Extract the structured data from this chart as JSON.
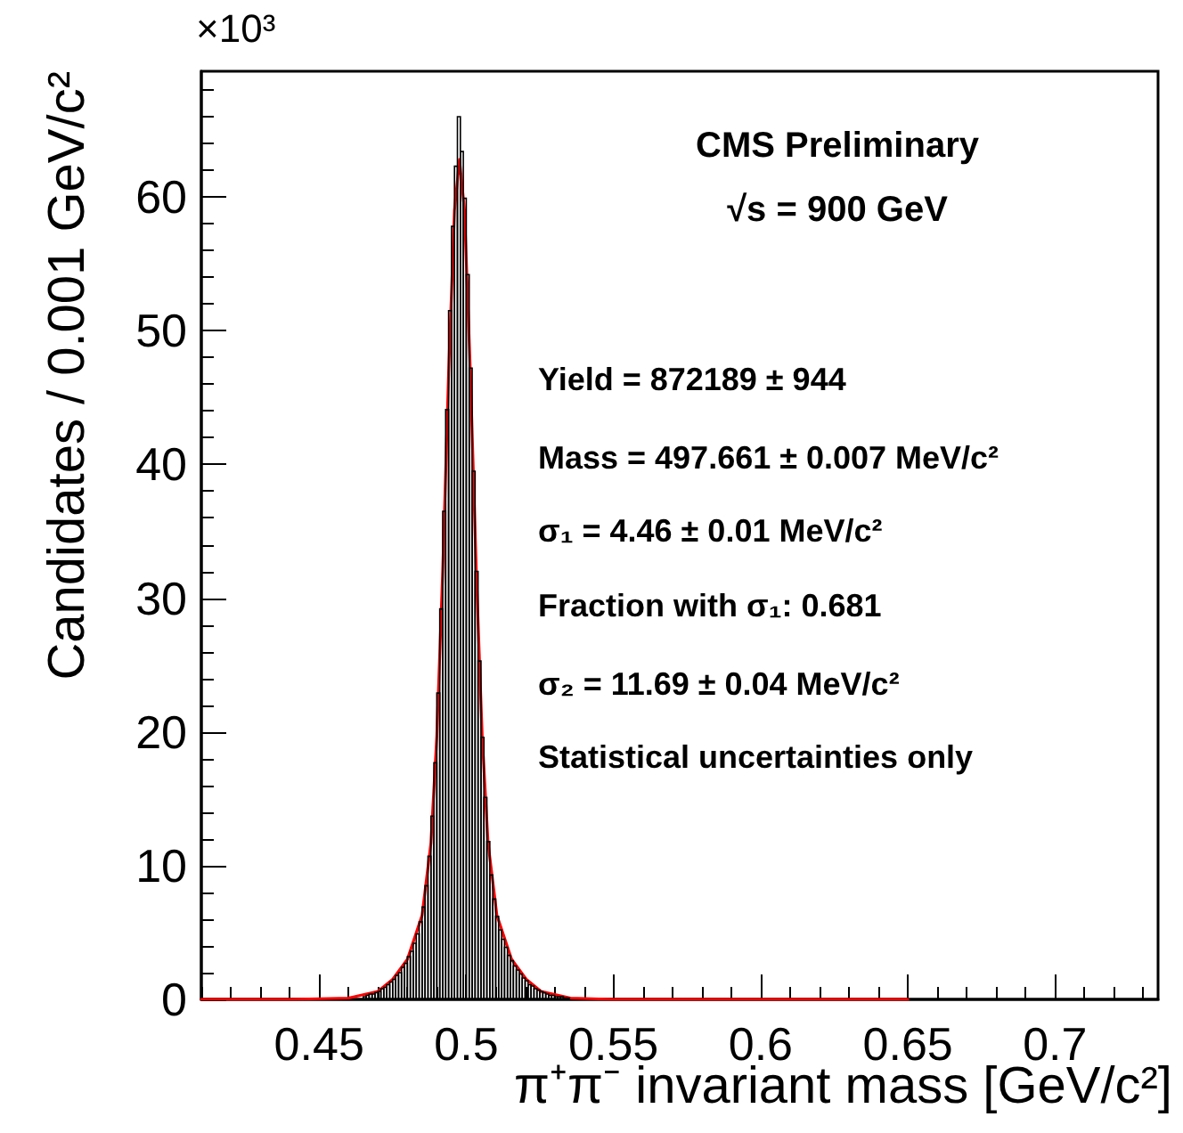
{
  "chart_data": {
    "type": "histogram",
    "title": "CMS Preliminary",
    "subtitle": "√s = 900 GeV",
    "xlabel": "π⁺π⁻ invariant mass [GeV/c²]",
    "ylabel": "Candidates / 0.001 GeV/c²",
    "annotations": [
      "×10³",
      "Yield = 872189 ± 944",
      "Mass = 497.661 ± 0.007 MeV/c²",
      "σ₁ = 4.46 ± 0.01 MeV/c²",
      "Fraction with σ₁: 0.681",
      "σ₂ = 11.69 ± 0.04 MeV/c²",
      "Statistical uncertainties only"
    ],
    "bins": [
      0.465,
      0.466,
      0.467,
      0.468,
      0.469,
      0.47,
      0.471,
      0.472,
      0.473,
      0.474,
      0.475,
      0.476,
      0.477,
      0.478,
      0.479,
      0.48,
      0.481,
      0.482,
      0.483,
      0.484,
      0.485,
      0.486,
      0.487,
      0.488,
      0.489,
      0.49,
      0.491,
      0.492,
      0.493,
      0.494,
      0.495,
      0.496,
      0.497,
      0.498,
      0.499,
      0.5,
      0.501,
      0.502,
      0.503,
      0.504,
      0.505,
      0.506,
      0.507,
      0.508,
      0.509,
      0.51,
      0.511,
      0.512,
      0.513,
      0.514,
      0.515,
      0.516,
      0.517,
      0.518,
      0.519,
      0.52,
      0.521,
      0.522,
      0.523,
      0.524,
      0.525,
      0.526,
      0.527,
      0.528,
      0.529,
      0.53,
      0.531,
      0.532,
      0.533,
      0.534,
      0.535
    ],
    "values": [
      0.2,
      0.3,
      0.4,
      0.4,
      0.5,
      0.6,
      0.8,
      0.9,
      1.1,
      1.3,
      1.5,
      1.8,
      2.0,
      2.4,
      2.7,
      3.2,
      3.6,
      4.2,
      4.9,
      5.8,
      6.9,
      8.5,
      10.7,
      13.7,
      17.7,
      22.9,
      29.2,
      36.5,
      44.1,
      51.5,
      57.8,
      62.3,
      66.0,
      63.4,
      59.9,
      54.2,
      47.2,
      39.5,
      32.0,
      25.3,
      19.6,
      15.1,
      11.8,
      9.3,
      7.5,
      6.2,
      5.2,
      4.5,
      3.9,
      3.3,
      2.9,
      2.5,
      2.2,
      1.9,
      1.6,
      1.4,
      1.1,
      1.0,
      0.8,
      0.7,
      0.6,
      0.5,
      0.4,
      0.3,
      0.3,
      0.2,
      0.2,
      0.2,
      0.1,
      0.1
    ],
    "color": "#000000",
    "series": [
      {
        "type": "line",
        "color": "#ff0000",
        "x": [
          0.41,
          0.44,
          0.46,
          0.47,
          0.475,
          0.48,
          0.485,
          0.488,
          0.49,
          0.492,
          0.494,
          0.496,
          0.4977,
          0.4994,
          0.5014,
          0.5034,
          0.5054,
          0.5074,
          0.5104,
          0.5154,
          0.5204,
          0.5254,
          0.5354,
          0.55,
          0.6,
          0.65
        ],
        "values": [
          0,
          0,
          0.1,
          0.6,
          1.5,
          3.0,
          6.3,
          11.7,
          19.7,
          32.0,
          46.8,
          59.0,
          62.8,
          59.0,
          46.8,
          32.0,
          19.7,
          11.7,
          6.3,
          3.0,
          1.5,
          0.6,
          0.1,
          0,
          0,
          0
        ]
      }
    ],
    "xlim": [
      0.41,
      0.735
    ],
    "xticks": [
      0.45,
      0.5,
      0.55,
      0.6,
      0.65,
      0.7
    ],
    "ylim": [
      0,
      69.4
    ],
    "yticks": [
      0,
      10,
      20,
      30,
      40,
      50,
      60
    ],
    "grid": false,
    "legend": false,
    "marker": "none",
    "line_style": "solid"
  }
}
